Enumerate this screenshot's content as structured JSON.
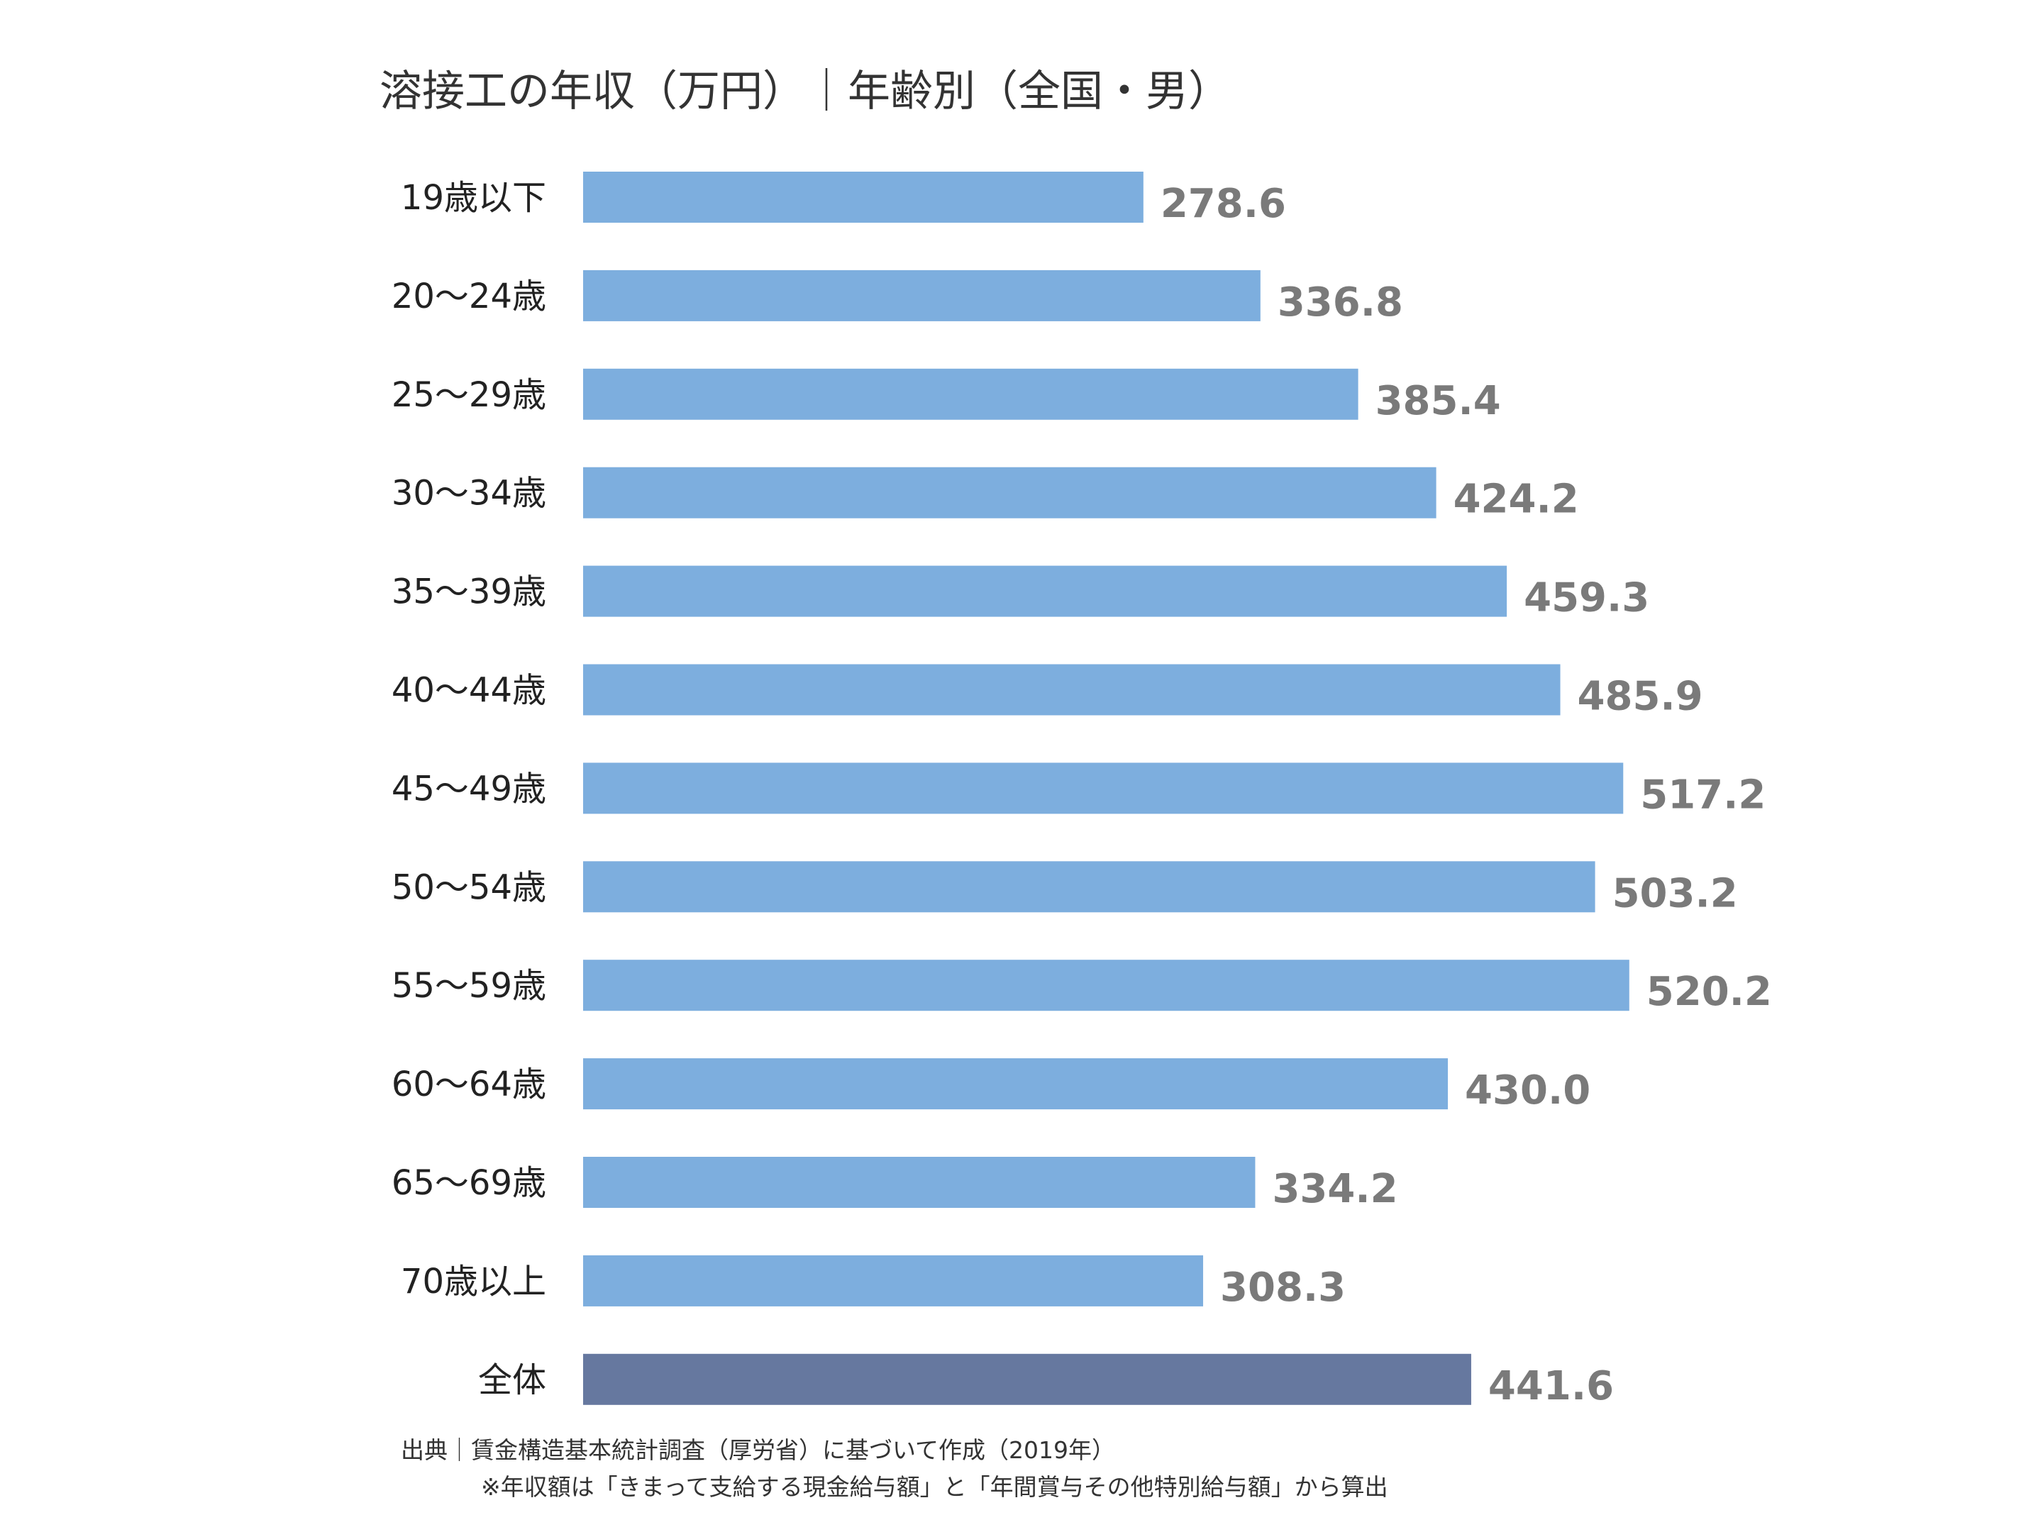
{
  "chart_data": {
    "type": "bar",
    "orientation": "horizontal",
    "title": "溶接工の年収（万円）｜年齢別（全国・男）",
    "categories": [
      "19歳以下",
      "20～24歳",
      "25～29歳",
      "30～34歳",
      "35～39歳",
      "40～44歳",
      "45～49歳",
      "50～54歳",
      "55～59歳",
      "60～64歳",
      "65～69歳",
      "70歳以上",
      "全体"
    ],
    "values": [
      278.6,
      336.8,
      385.4,
      424.2,
      459.3,
      485.9,
      517.2,
      503.2,
      520.2,
      430.0,
      334.2,
      308.3,
      441.6
    ],
    "value_labels": [
      "278.6",
      "336.8",
      "385.4",
      "424.2",
      "459.3",
      "485.9",
      "517.2",
      "503.2",
      "520.2",
      "430.0",
      "334.2",
      "308.3",
      "441.6"
    ],
    "xlim": [
      0,
      550
    ],
    "grid": false,
    "legend": "none",
    "colors": {
      "bar": "#7daede",
      "total_bar": "#66789f",
      "value_text": "#7a7a7a"
    }
  },
  "footer": {
    "source": "出典｜賃金構造基本統計調査（厚労省）に基づいて作成（2019年）",
    "note": "※年収額は「きまって支給する現金給与額」と「年間賞与その他特別給与額」から算出"
  }
}
